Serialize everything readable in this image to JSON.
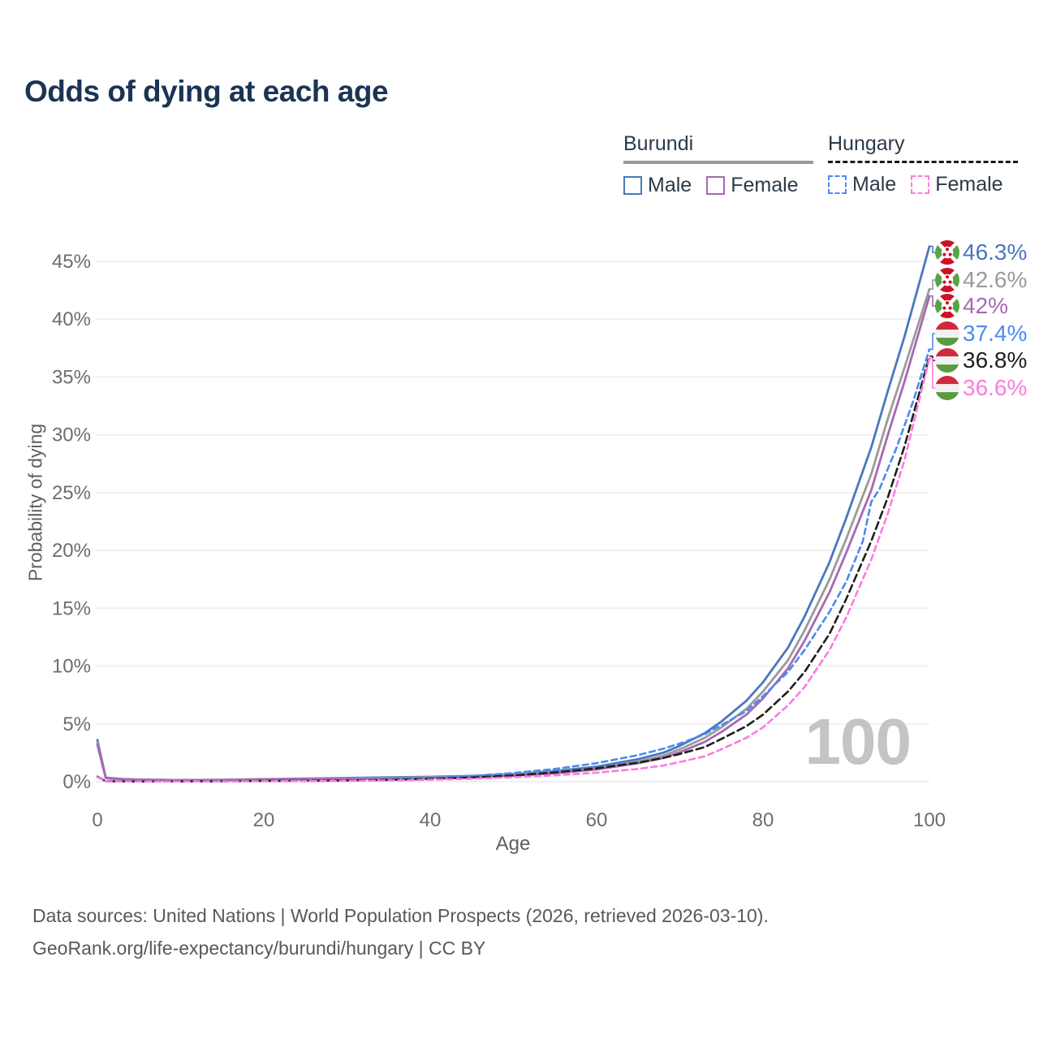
{
  "title": "Odds of dying at each age",
  "watermark": "100",
  "legend": {
    "groups": [
      {
        "label": "Burundi",
        "style": "solid",
        "underline_color": "#9a9a9a",
        "items": [
          {
            "label": "Male",
            "color": "#4a77be"
          },
          {
            "label": "Female",
            "color": "#a669b2"
          }
        ]
      },
      {
        "label": "Hungary",
        "style": "dashed",
        "underline_color": "#1a1a1a",
        "items": [
          {
            "label": "Male",
            "color": "#4d8af0"
          },
          {
            "label": "Female",
            "color": "#fc7bdf"
          }
        ]
      }
    ]
  },
  "chart_data": {
    "type": "line",
    "title": "Odds of dying at each age",
    "xlabel": "Age",
    "ylabel": "Probability of dying",
    "xlim": [
      0,
      100
    ],
    "ylim": [
      0,
      45
    ],
    "x_ticks": [
      0,
      20,
      40,
      60,
      80,
      100
    ],
    "y_ticks": [
      0,
      5,
      10,
      15,
      20,
      25,
      30,
      35,
      40,
      45
    ],
    "y_tick_suffix": "%",
    "grid": "horizontal",
    "legend_position": "top-right",
    "series": [
      {
        "name": "Burundi Male",
        "country": "Burundi",
        "sex": "male",
        "color": "#4a77be",
        "dashed": false,
        "flag": "burundi",
        "end_label": "46.3%",
        "points": [
          [
            0,
            3.6
          ],
          [
            1,
            0.35
          ],
          [
            3,
            0.24
          ],
          [
            5,
            0.18
          ],
          [
            10,
            0.14
          ],
          [
            15,
            0.16
          ],
          [
            20,
            0.22
          ],
          [
            25,
            0.27
          ],
          [
            30,
            0.32
          ],
          [
            35,
            0.37
          ],
          [
            40,
            0.42
          ],
          [
            45,
            0.5
          ],
          [
            50,
            0.65
          ],
          [
            55,
            0.92
          ],
          [
            60,
            1.3
          ],
          [
            65,
            1.95
          ],
          [
            68,
            2.5
          ],
          [
            70,
            3.1
          ],
          [
            73,
            4.2
          ],
          [
            75,
            5.2
          ],
          [
            78,
            7.0
          ],
          [
            80,
            8.6
          ],
          [
            83,
            11.6
          ],
          [
            85,
            14.3
          ],
          [
            88,
            19.0
          ],
          [
            90,
            22.8
          ],
          [
            93,
            28.9
          ],
          [
            95,
            33.8
          ],
          [
            97,
            38.5
          ],
          [
            100,
            46.3
          ]
        ]
      },
      {
        "name": "Burundi Both sexes",
        "country": "Burundi",
        "sex": "both",
        "color": "#9a9a9a",
        "dashed": false,
        "flag": "burundi",
        "end_label": "42.6%",
        "points": [
          [
            0,
            3.4
          ],
          [
            1,
            0.33
          ],
          [
            3,
            0.22
          ],
          [
            5,
            0.17
          ],
          [
            10,
            0.13
          ],
          [
            15,
            0.15
          ],
          [
            20,
            0.2
          ],
          [
            25,
            0.24
          ],
          [
            30,
            0.29
          ],
          [
            35,
            0.33
          ],
          [
            40,
            0.38
          ],
          [
            45,
            0.45
          ],
          [
            50,
            0.58
          ],
          [
            55,
            0.82
          ],
          [
            60,
            1.15
          ],
          [
            65,
            1.75
          ],
          [
            68,
            2.25
          ],
          [
            70,
            2.8
          ],
          [
            73,
            3.8
          ],
          [
            75,
            4.7
          ],
          [
            78,
            6.3
          ],
          [
            80,
            7.8
          ],
          [
            83,
            10.5
          ],
          [
            85,
            13.1
          ],
          [
            88,
            17.5
          ],
          [
            90,
            21.0
          ],
          [
            93,
            26.6
          ],
          [
            95,
            31.4
          ],
          [
            97,
            35.8
          ],
          [
            100,
            42.6
          ]
        ]
      },
      {
        "name": "Burundi Female",
        "country": "Burundi",
        "sex": "female",
        "color": "#a669b2",
        "dashed": false,
        "flag": "burundi",
        "end_label": "42%",
        "points": [
          [
            0,
            3.2
          ],
          [
            1,
            0.3
          ],
          [
            3,
            0.2
          ],
          [
            5,
            0.16
          ],
          [
            10,
            0.12
          ],
          [
            15,
            0.13
          ],
          [
            20,
            0.17
          ],
          [
            25,
            0.2
          ],
          [
            30,
            0.24
          ],
          [
            35,
            0.28
          ],
          [
            40,
            0.33
          ],
          [
            45,
            0.4
          ],
          [
            50,
            0.52
          ],
          [
            55,
            0.73
          ],
          [
            60,
            1.05
          ],
          [
            65,
            1.6
          ],
          [
            68,
            2.05
          ],
          [
            70,
            2.55
          ],
          [
            73,
            3.45
          ],
          [
            75,
            4.3
          ],
          [
            78,
            5.8
          ],
          [
            80,
            7.2
          ],
          [
            83,
            9.8
          ],
          [
            85,
            12.2
          ],
          [
            88,
            16.4
          ],
          [
            90,
            19.8
          ],
          [
            93,
            25.2
          ],
          [
            95,
            30.0
          ],
          [
            97,
            34.6
          ],
          [
            100,
            42.0
          ]
        ]
      },
      {
        "name": "Hungary Male",
        "country": "Hungary",
        "sex": "male",
        "color": "#4d8af0",
        "dashed": true,
        "flag": "hungary",
        "end_label": "37.4%",
        "points": [
          [
            0,
            0.45
          ],
          [
            1,
            0.04
          ],
          [
            5,
            0.02
          ],
          [
            10,
            0.02
          ],
          [
            15,
            0.04
          ],
          [
            20,
            0.08
          ],
          [
            25,
            0.1
          ],
          [
            30,
            0.13
          ],
          [
            35,
            0.2
          ],
          [
            40,
            0.33
          ],
          [
            45,
            0.5
          ],
          [
            50,
            0.75
          ],
          [
            55,
            1.1
          ],
          [
            60,
            1.6
          ],
          [
            65,
            2.3
          ],
          [
            68,
            2.85
          ],
          [
            70,
            3.3
          ],
          [
            73,
            4.1
          ],
          [
            75,
            4.9
          ],
          [
            78,
            6.1
          ],
          [
            80,
            7.4
          ],
          [
            83,
            9.5
          ],
          [
            85,
            11.4
          ],
          [
            88,
            14.7
          ],
          [
            90,
            17.3
          ],
          [
            92,
            20.8
          ],
          [
            93,
            24.2
          ],
          [
            94,
            25.3
          ],
          [
            96,
            28.8
          ],
          [
            98,
            32.8
          ],
          [
            100,
            37.4
          ]
        ]
      },
      {
        "name": "Hungary Both sexes",
        "country": "Hungary",
        "sex": "both",
        "color": "#1f1f1f",
        "dashed": true,
        "flag": "hungary",
        "end_label": "36.8%",
        "points": [
          [
            0,
            0.42
          ],
          [
            1,
            0.035
          ],
          [
            5,
            0.018
          ],
          [
            10,
            0.018
          ],
          [
            15,
            0.035
          ],
          [
            20,
            0.06
          ],
          [
            25,
            0.08
          ],
          [
            30,
            0.1
          ],
          [
            35,
            0.15
          ],
          [
            40,
            0.24
          ],
          [
            45,
            0.36
          ],
          [
            50,
            0.54
          ],
          [
            55,
            0.8
          ],
          [
            60,
            1.15
          ],
          [
            65,
            1.65
          ],
          [
            68,
            2.05
          ],
          [
            70,
            2.4
          ],
          [
            73,
            3.0
          ],
          [
            75,
            3.7
          ],
          [
            78,
            4.8
          ],
          [
            80,
            5.8
          ],
          [
            83,
            7.8
          ],
          [
            85,
            9.5
          ],
          [
            88,
            12.8
          ],
          [
            90,
            15.8
          ],
          [
            93,
            20.8
          ],
          [
            95,
            24.6
          ],
          [
            97,
            29.0
          ],
          [
            100,
            36.8
          ]
        ]
      },
      {
        "name": "Hungary Female",
        "country": "Hungary",
        "sex": "female",
        "color": "#fc7bdf",
        "dashed": true,
        "flag": "hungary",
        "end_label": "36.6%",
        "points": [
          [
            0,
            0.4
          ],
          [
            1,
            0.03
          ],
          [
            5,
            0.015
          ],
          [
            10,
            0.015
          ],
          [
            15,
            0.03
          ],
          [
            20,
            0.04
          ],
          [
            25,
            0.05
          ],
          [
            30,
            0.07
          ],
          [
            35,
            0.1
          ],
          [
            40,
            0.16
          ],
          [
            45,
            0.25
          ],
          [
            50,
            0.38
          ],
          [
            55,
            0.55
          ],
          [
            60,
            0.78
          ],
          [
            65,
            1.1
          ],
          [
            68,
            1.4
          ],
          [
            70,
            1.7
          ],
          [
            73,
            2.2
          ],
          [
            75,
            2.8
          ],
          [
            78,
            3.8
          ],
          [
            80,
            4.7
          ],
          [
            83,
            6.6
          ],
          [
            85,
            8.2
          ],
          [
            88,
            11.4
          ],
          [
            90,
            14.2
          ],
          [
            93,
            19.2
          ],
          [
            95,
            23.2
          ],
          [
            97,
            27.8
          ],
          [
            100,
            36.6
          ]
        ]
      }
    ],
    "flag_colors": {
      "burundi": {
        "red": "#ce1126",
        "green": "#55a546",
        "white": "#ffffff"
      },
      "hungary": {
        "red": "#cd2a3e",
        "white": "#f1f1f1",
        "green": "#5a9a43"
      }
    }
  },
  "footer": {
    "line1": "Data sources: United Nations | World Population Prospects (2026, retrieved 2026-03-10).",
    "line2": "GeoRank.org/life-expectancy/burundi/hungary | CC BY"
  }
}
